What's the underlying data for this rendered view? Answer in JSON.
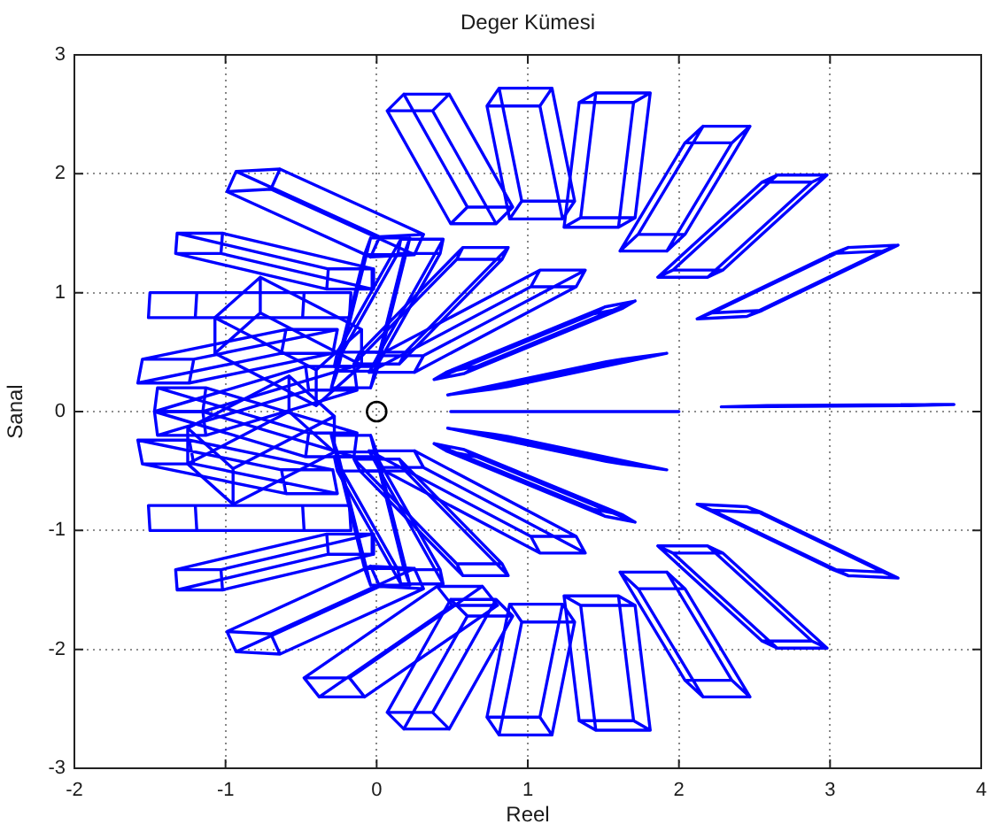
{
  "chart_data": {
    "type": "line",
    "title": "Deger Kümesi",
    "xlabel": "Reel",
    "ylabel": "Sanal",
    "xlim": [
      -2,
      4
    ],
    "ylim": [
      -3,
      3
    ],
    "xticks": [
      -2,
      -1,
      0,
      1,
      2,
      3,
      4
    ],
    "yticks": [
      -3,
      -2,
      -1,
      0,
      1,
      2,
      3
    ],
    "grid": true,
    "legend": false,
    "marker": "none",
    "line_style": "solid",
    "series": [
      {
        "color": "#0000ff",
        "x": [
          2.28,
          3.38,
          3.52,
          2.42,
          2.28,
          2.58,
          3.68,
          3.82,
          2.72,
          2.58,
          2.72,
          2.42,
          3.52,
          3.82,
          3.68,
          3.38
        ],
        "values": [
          0.04,
          0.05,
          0.05,
          0.04,
          0.04,
          0.05,
          0.06,
          0.06,
          0.05,
          0.05,
          0.05,
          0.04,
          0.05,
          0.06,
          0.06,
          0.05
        ]
      },
      {
        "color": "#0000ff",
        "x": [
          0.49,
          1.49,
          1.65,
          0.65,
          0.49,
          0.84,
          1.84,
          2.0,
          1.0,
          0.84,
          1.0,
          0.65,
          1.65,
          2.0,
          1.84,
          1.49
        ],
        "values": [
          0,
          0,
          0,
          0,
          0,
          0,
          0,
          0,
          0,
          0,
          0,
          0,
          0,
          0,
          0,
          0
        ]
      },
      {
        "color": "#0000ff",
        "x": [
          2.12,
          3.02,
          3.12,
          2.22,
          2.12,
          2.45,
          3.35,
          3.45,
          2.55,
          2.45,
          2.55,
          2.22,
          3.12,
          3.45,
          3.35,
          3.02
        ],
        "values": [
          0.78,
          1.33,
          1.38,
          0.83,
          0.78,
          0.8,
          1.35,
          1.4,
          0.85,
          0.8,
          0.85,
          0.83,
          1.38,
          1.4,
          1.35,
          1.33
        ]
      },
      {
        "color": "#0000ff",
        "x": [
          2.55,
          1.86,
          1.96,
          2.65,
          2.55,
          2.88,
          2.19,
          2.29,
          2.98,
          2.88,
          2.98,
          2.65,
          1.96,
          2.29,
          2.19,
          1.86
        ],
        "values": [
          1.93,
          1.13,
          1.19,
          1.99,
          1.93,
          1.93,
          1.13,
          1.19,
          1.99,
          1.93,
          1.99,
          1.99,
          1.19,
          1.19,
          1.13,
          1.13
        ]
      },
      {
        "color": "#0000ff",
        "x": [
          2.04,
          1.61,
          1.73,
          2.16,
          2.04,
          2.35,
          1.92,
          2.04,
          2.47,
          2.35,
          2.47,
          2.16,
          1.73,
          2.04,
          1.92,
          1.61
        ],
        "values": [
          2.26,
          1.35,
          1.49,
          2.4,
          2.26,
          2.26,
          1.35,
          1.49,
          2.4,
          2.26,
          2.4,
          2.4,
          1.49,
          1.49,
          1.35,
          1.35
        ]
      },
      {
        "color": "#0000ff",
        "x": [
          1.34,
          1.24,
          1.35,
          1.45,
          1.34,
          1.7,
          1.6,
          1.71,
          1.81,
          1.7,
          1.81,
          1.45,
          1.35,
          1.71,
          1.6,
          1.24
        ],
        "values": [
          2.6,
          1.55,
          1.63,
          2.68,
          2.6,
          2.6,
          1.55,
          1.63,
          2.68,
          2.6,
          2.68,
          2.68,
          1.63,
          1.63,
          1.55,
          1.55
        ]
      },
      {
        "color": "#0000ff",
        "x": [
          0.73,
          0.88,
          0.96,
          0.81,
          0.73,
          1.08,
          1.23,
          1.31,
          1.16,
          1.08,
          1.16,
          0.81,
          0.96,
          1.31,
          1.23,
          0.88
        ],
        "values": [
          2.57,
          1.62,
          1.77,
          2.72,
          2.57,
          2.57,
          1.62,
          1.77,
          2.72,
          2.57,
          2.72,
          2.72,
          1.77,
          1.77,
          1.62,
          1.62
        ]
      },
      {
        "color": "#0000ff",
        "x": [
          0.07,
          0.49,
          0.6,
          0.18,
          0.07,
          0.37,
          0.79,
          0.9,
          0.48,
          0.37,
          0.48,
          0.18,
          0.6,
          0.9,
          0.79,
          0.49
        ],
        "values": [
          2.53,
          1.58,
          1.72,
          2.67,
          2.53,
          2.53,
          1.58,
          1.72,
          2.67,
          2.53,
          2.67,
          2.67,
          1.72,
          1.72,
          1.58,
          1.58
        ]
      },
      {
        "color": "#0000ff",
        "x": [
          -0.99,
          -0.04,
          0.02,
          -0.93,
          -0.99,
          -0.7,
          0.25,
          0.31,
          -0.64,
          -0.7,
          -0.64,
          -0.93,
          0.02,
          0.31,
          0.25,
          -0.04
        ],
        "values": [
          1.85,
          1.3,
          1.47,
          2.02,
          1.85,
          1.87,
          1.32,
          1.49,
          2.04,
          1.87,
          2.04,
          2.02,
          1.47,
          1.49,
          1.32,
          1.3
        ]
      },
      {
        "color": "#0000ff",
        "x": [
          -1.33,
          -0.33,
          -0.32,
          -1.32,
          -1.33,
          -1.03,
          -0.03,
          -0.02,
          -1.02,
          -1.03,
          -1.02,
          -1.32,
          -0.32,
          -0.02,
          -0.03,
          -0.33
        ],
        "values": [
          1.33,
          1.03,
          1.2,
          1.5,
          1.33,
          1.33,
          1.03,
          1.2,
          1.5,
          1.33,
          1.5,
          1.5,
          1.2,
          1.2,
          1.03,
          1.03
        ]
      },
      {
        "color": "#0000ff",
        "x": [
          -1.51,
          -0.49,
          -0.48,
          -1.5,
          -1.51,
          -1.2,
          -0.18,
          -0.17,
          -1.19,
          -1.2,
          -1.19,
          -1.5,
          -0.48,
          -0.17,
          -0.18,
          -0.49
        ],
        "values": [
          0.79,
          0.79,
          1.0,
          1.0,
          0.79,
          0.79,
          0.79,
          1.0,
          1.0,
          0.79,
          1.0,
          1.0,
          1.0,
          1.0,
          0.79,
          0.79
        ]
      },
      {
        "color": "#0000ff",
        "x": [
          -1.58,
          -0.63,
          -0.6,
          -1.55,
          -1.58,
          -1.24,
          -0.29,
          -0.26,
          -1.21,
          -1.24,
          -1.21,
          -1.55,
          -0.6,
          -0.26,
          -0.29,
          -0.63
        ],
        "values": [
          0.24,
          0.49,
          0.69,
          0.44,
          0.24,
          0.24,
          0.49,
          0.69,
          0.44,
          0.24,
          0.44,
          0.44,
          0.69,
          0.69,
          0.49,
          0.49
        ]
      },
      {
        "color": "#0000ff",
        "x": [
          -1.47,
          -0.47,
          -0.45,
          -1.45,
          -1.47,
          -1.15,
          -0.15,
          -0.13,
          -1.13,
          -1.15,
          -1.13,
          -1.45,
          -0.45,
          -0.13,
          -0.15,
          -0.47
        ],
        "values": [
          0.0,
          -0.38,
          -0.18,
          0.2,
          0.0,
          0.0,
          -0.38,
          -0.18,
          0.2,
          0.0,
          0.2,
          0.2,
          -0.18,
          -0.18,
          -0.38,
          -0.38
        ]
      },
      {
        "color": "#0000ff",
        "x": [
          0.47,
          1.52,
          1.62,
          0.57,
          0.47,
          0.77,
          1.82,
          1.92,
          0.87,
          0.77,
          0.87,
          0.57,
          1.62,
          1.92,
          1.82,
          1.52
        ],
        "values": [
          0.14,
          0.42,
          0.44,
          0.16,
          0.14,
          0.19,
          0.47,
          0.49,
          0.21,
          0.19,
          0.21,
          0.16,
          0.44,
          0.49,
          0.47,
          0.42
        ]
      },
      {
        "color": "#0000ff",
        "x": [
          0.38,
          1.43,
          1.51,
          0.46,
          0.38,
          0.58,
          1.63,
          1.71,
          0.66,
          0.58,
          0.66,
          0.46,
          1.51,
          1.71,
          1.63,
          1.43
        ],
        "values": [
          0.27,
          0.82,
          0.88,
          0.33,
          0.27,
          0.32,
          0.87,
          0.93,
          0.38,
          0.32,
          0.38,
          0.33,
          0.88,
          0.93,
          0.87,
          0.82
        ]
      },
      {
        "color": "#0000ff",
        "x": [
          -0.05,
          1.02,
          1.08,
          0.01,
          -0.05,
          0.25,
          1.32,
          1.38,
          0.31,
          0.25,
          0.31,
          0.01,
          1.08,
          1.38,
          1.32,
          1.02
        ],
        "values": [
          0.33,
          1.05,
          1.19,
          0.47,
          0.33,
          0.33,
          1.05,
          1.19,
          0.47,
          0.33,
          0.47,
          0.47,
          1.19,
          1.19,
          1.05,
          1.05
        ]
      },
      {
        "color": "#0000ff",
        "x": [
          -0.15,
          0.53,
          0.57,
          -0.11,
          -0.15,
          0.15,
          0.83,
          0.87,
          0.19,
          0.15,
          0.19,
          -0.11,
          0.57,
          0.87,
          0.83,
          0.53
        ],
        "values": [
          0.4,
          1.28,
          1.38,
          0.5,
          0.4,
          0.4,
          1.28,
          1.38,
          0.5,
          0.4,
          0.5,
          0.5,
          1.38,
          1.38,
          1.28,
          1.28
        ]
      },
      {
        "color": "#0000ff",
        "x": [
          -0.28,
          0.14,
          0.16,
          -0.26,
          -0.28,
          0.0,
          0.42,
          0.44,
          0.02,
          0.0,
          0.02,
          -0.26,
          0.16,
          0.44,
          0.42,
          0.14
        ],
        "values": [
          0.38,
          1.33,
          1.45,
          0.5,
          0.38,
          0.38,
          1.33,
          1.45,
          0.5,
          0.38,
          0.5,
          0.5,
          1.45,
          1.45,
          1.33,
          1.33
        ]
      },
      {
        "color": "#0000ff",
        "x": [
          -0.3,
          -0.08,
          -0.04,
          -0.26,
          -0.3,
          -0.04,
          0.18,
          0.22,
          0.0,
          -0.04,
          0.0,
          -0.26,
          -0.04,
          0.22,
          0.18,
          -0.08
        ],
        "values": [
          0.2,
          1.32,
          1.46,
          0.34,
          0.2,
          0.2,
          1.32,
          1.46,
          0.34,
          0.2,
          0.34,
          0.34,
          1.46,
          1.46,
          1.32,
          1.32
        ]
      },
      {
        "color": "#0000ff",
        "x": [
          -0.4,
          -1.07,
          -0.77,
          -0.1,
          -0.4,
          -0.4,
          -1.07,
          -0.77,
          -0.1,
          -0.4,
          -0.1,
          -0.1,
          -0.77,
          -0.77,
          -1.07,
          -1.07
        ],
        "values": [
          0.05,
          0.49,
          0.83,
          0.39,
          0.05,
          0.35,
          0.79,
          1.13,
          0.69,
          0.35,
          0.69,
          0.39,
          0.83,
          1.13,
          0.79,
          0.49
        ]
      },
      {
        "color": "#0000ff",
        "x": [
          2.12,
          3.02,
          3.12,
          2.22,
          2.12,
          2.45,
          3.35,
          3.45,
          2.55,
          2.45,
          2.55,
          2.22,
          3.12,
          3.45,
          3.35,
          3.02
        ],
        "values": [
          -0.78,
          -1.33,
          -1.38,
          -0.83,
          -0.78,
          -0.8,
          -1.35,
          -1.4,
          -0.85,
          -0.8,
          -0.85,
          -0.83,
          -1.38,
          -1.4,
          -1.35,
          -1.33
        ]
      },
      {
        "color": "#0000ff",
        "x": [
          2.55,
          1.86,
          1.96,
          2.65,
          2.55,
          2.88,
          2.19,
          2.29,
          2.98,
          2.88,
          2.98,
          2.65,
          1.96,
          2.29,
          2.19,
          1.86
        ],
        "values": [
          -1.93,
          -1.13,
          -1.19,
          -1.99,
          -1.93,
          -1.93,
          -1.13,
          -1.19,
          -1.99,
          -1.93,
          -1.99,
          -1.99,
          -1.19,
          -1.19,
          -1.13,
          -1.13
        ]
      },
      {
        "color": "#0000ff",
        "x": [
          2.04,
          1.61,
          1.73,
          2.16,
          2.04,
          2.35,
          1.92,
          2.04,
          2.47,
          2.35,
          2.47,
          2.16,
          1.73,
          2.04,
          1.92,
          1.61
        ],
        "values": [
          -2.26,
          -1.35,
          -1.49,
          -2.4,
          -2.26,
          -2.26,
          -1.35,
          -1.49,
          -2.4,
          -2.26,
          -2.4,
          -2.4,
          -1.49,
          -1.49,
          -1.35,
          -1.35
        ]
      },
      {
        "color": "#0000ff",
        "x": [
          1.34,
          1.24,
          1.35,
          1.45,
          1.34,
          1.7,
          1.6,
          1.71,
          1.81,
          1.7,
          1.81,
          1.45,
          1.35,
          1.71,
          1.6,
          1.24
        ],
        "values": [
          -2.6,
          -1.55,
          -1.63,
          -2.68,
          -2.6,
          -2.6,
          -1.55,
          -1.63,
          -2.68,
          -2.6,
          -2.68,
          -2.68,
          -1.63,
          -1.63,
          -1.55,
          -1.55
        ]
      },
      {
        "color": "#0000ff",
        "x": [
          0.73,
          0.88,
          0.96,
          0.81,
          0.73,
          1.08,
          1.23,
          1.31,
          1.16,
          1.08,
          1.16,
          0.81,
          0.96,
          1.31,
          1.23,
          0.88
        ],
        "values": [
          -2.57,
          -1.62,
          -1.77,
          -2.72,
          -2.57,
          -2.57,
          -1.62,
          -1.77,
          -2.72,
          -2.57,
          -2.72,
          -2.72,
          -1.77,
          -1.77,
          -1.62,
          -1.62
        ]
      },
      {
        "color": "#0000ff",
        "x": [
          0.07,
          0.49,
          0.6,
          0.18,
          0.07,
          0.37,
          0.79,
          0.9,
          0.48,
          0.37,
          0.48,
          0.18,
          0.6,
          0.9,
          0.79,
          0.49
        ],
        "values": [
          -2.53,
          -1.58,
          -1.72,
          -2.67,
          -2.53,
          -2.53,
          -1.58,
          -1.72,
          -2.67,
          -2.53,
          -2.67,
          -2.67,
          -1.72,
          -1.72,
          -1.58,
          -1.58
        ]
      },
      {
        "color": "#0000ff",
        "x": [
          -0.48,
          0.4,
          0.5,
          -0.38,
          -0.48,
          -0.18,
          0.7,
          0.8,
          -0.08,
          -0.18,
          -0.08,
          -0.38,
          0.5,
          0.8,
          0.7,
          0.4
        ],
        "values": [
          -2.24,
          -1.47,
          -1.63,
          -2.4,
          -2.24,
          -2.24,
          -1.47,
          -1.63,
          -2.4,
          -2.24,
          -2.4,
          -2.4,
          -1.63,
          -1.63,
          -1.47,
          -1.47
        ]
      },
      {
        "color": "#0000ff",
        "x": [
          -0.99,
          -0.04,
          0.02,
          -0.93,
          -0.99,
          -0.7,
          0.25,
          0.31,
          -0.64,
          -0.7,
          -0.64,
          -0.93,
          0.02,
          0.31,
          0.25,
          -0.04
        ],
        "values": [
          -1.85,
          -1.3,
          -1.47,
          -2.02,
          -1.85,
          -1.87,
          -1.32,
          -1.49,
          -2.04,
          -1.87,
          -2.04,
          -2.02,
          -1.47,
          -1.49,
          -1.32,
          -1.3
        ]
      },
      {
        "color": "#0000ff",
        "x": [
          -1.33,
          -0.33,
          -0.32,
          -1.32,
          -1.33,
          -1.03,
          -0.03,
          -0.02,
          -1.02,
          -1.03,
          -1.02,
          -1.32,
          -0.32,
          -0.02,
          -0.03,
          -0.33
        ],
        "values": [
          -1.33,
          -1.03,
          -1.2,
          -1.5,
          -1.33,
          -1.33,
          -1.03,
          -1.2,
          -1.5,
          -1.33,
          -1.5,
          -1.5,
          -1.2,
          -1.2,
          -1.03,
          -1.03
        ]
      },
      {
        "color": "#0000ff",
        "x": [
          -1.51,
          -0.49,
          -0.48,
          -1.5,
          -1.51,
          -1.2,
          -0.18,
          -0.17,
          -1.19,
          -1.2,
          -1.19,
          -1.5,
          -0.48,
          -0.17,
          -0.18,
          -0.49
        ],
        "values": [
          -0.79,
          -0.79,
          -1.0,
          -1.0,
          -0.79,
          -0.79,
          -0.79,
          -1.0,
          -1.0,
          -0.79,
          -1.0,
          -1.0,
          -1.0,
          -1.0,
          -0.79,
          -0.79
        ]
      },
      {
        "color": "#0000ff",
        "x": [
          -1.58,
          -0.63,
          -0.6,
          -1.55,
          -1.58,
          -1.24,
          -0.29,
          -0.26,
          -1.21,
          -1.24,
          -1.21,
          -1.55,
          -0.6,
          -0.26,
          -0.29,
          -0.63
        ],
        "values": [
          -0.24,
          -0.49,
          -0.69,
          -0.44,
          -0.24,
          -0.24,
          -0.49,
          -0.69,
          -0.44,
          -0.24,
          -0.44,
          -0.44,
          -0.69,
          -0.69,
          -0.49,
          -0.49
        ]
      },
      {
        "color": "#0000ff",
        "x": [
          -1.47,
          -0.47,
          -0.45,
          -1.45,
          -1.47,
          -1.15,
          -0.15,
          -0.13,
          -1.13,
          -1.15,
          -1.13,
          -1.45,
          -0.45,
          -0.13,
          -0.15,
          -0.47
        ],
        "values": [
          0.0,
          0.38,
          0.18,
          -0.2,
          0.0,
          0.0,
          0.38,
          0.18,
          -0.2,
          0.0,
          -0.2,
          -0.2,
          0.18,
          0.18,
          0.38,
          0.38
        ]
      },
      {
        "color": "#0000ff",
        "x": [
          0.47,
          1.52,
          1.62,
          0.57,
          0.47,
          0.77,
          1.82,
          1.92,
          0.87,
          0.77,
          0.87,
          0.57,
          1.62,
          1.92,
          1.82,
          1.52
        ],
        "values": [
          -0.14,
          -0.42,
          -0.44,
          -0.16,
          -0.14,
          -0.19,
          -0.47,
          -0.49,
          -0.21,
          -0.19,
          -0.21,
          -0.16,
          -0.44,
          -0.49,
          -0.47,
          -0.42
        ]
      },
      {
        "color": "#0000ff",
        "x": [
          0.38,
          1.43,
          1.51,
          0.46,
          0.38,
          0.58,
          1.63,
          1.71,
          0.66,
          0.58,
          0.66,
          0.46,
          1.51,
          1.71,
          1.63,
          1.43
        ],
        "values": [
          -0.27,
          -0.82,
          -0.88,
          -0.33,
          -0.27,
          -0.32,
          -0.87,
          -0.93,
          -0.38,
          -0.32,
          -0.38,
          -0.33,
          -0.88,
          -0.93,
          -0.87,
          -0.82
        ]
      },
      {
        "color": "#0000ff",
        "x": [
          -0.05,
          1.02,
          1.08,
          0.01,
          -0.05,
          0.25,
          1.32,
          1.38,
          0.31,
          0.25,
          0.31,
          0.01,
          1.08,
          1.38,
          1.32,
          1.02
        ],
        "values": [
          -0.33,
          -1.05,
          -1.19,
          -0.47,
          -0.33,
          -0.33,
          -1.05,
          -1.19,
          -0.47,
          -0.33,
          -0.47,
          -0.47,
          -1.19,
          -1.19,
          -1.05,
          -1.05
        ]
      },
      {
        "color": "#0000ff",
        "x": [
          -0.15,
          0.53,
          0.57,
          -0.11,
          -0.15,
          0.15,
          0.83,
          0.87,
          0.19,
          0.15,
          0.19,
          -0.11,
          0.57,
          0.87,
          0.83,
          0.53
        ],
        "values": [
          -0.4,
          -1.28,
          -1.38,
          -0.5,
          -0.4,
          -0.4,
          -1.28,
          -1.38,
          -0.5,
          -0.4,
          -0.5,
          -0.5,
          -1.38,
          -1.38,
          -1.28,
          -1.28
        ]
      },
      {
        "color": "#0000ff",
        "x": [
          -0.28,
          0.14,
          0.16,
          -0.26,
          -0.28,
          0.0,
          0.42,
          0.44,
          0.02,
          0.0,
          0.02,
          -0.26,
          0.16,
          0.44,
          0.42,
          0.14
        ],
        "values": [
          -0.38,
          -1.33,
          -1.45,
          -0.5,
          -0.38,
          -0.38,
          -1.33,
          -1.45,
          -0.5,
          -0.38,
          -0.5,
          -0.5,
          -1.45,
          -1.45,
          -1.33,
          -1.33
        ]
      },
      {
        "color": "#0000ff",
        "x": [
          -0.3,
          -0.08,
          -0.04,
          -0.26,
          -0.3,
          -0.04,
          0.18,
          0.22,
          0.0,
          -0.04,
          0.0,
          -0.26,
          -0.04,
          0.22,
          0.18,
          -0.08
        ],
        "values": [
          -0.2,
          -1.32,
          -1.46,
          -0.34,
          -0.2,
          -0.2,
          -1.32,
          -1.46,
          -0.34,
          -0.2,
          -0.34,
          -0.34,
          -1.46,
          -1.46,
          -1.32,
          -1.32
        ]
      },
      {
        "color": "#0000ff",
        "x": [
          -0.58,
          -1.25,
          -0.95,
          -0.28,
          -0.58,
          -0.58,
          -1.25,
          -0.95,
          -0.28,
          -0.58,
          -0.28,
          -0.28,
          -0.95,
          -0.95,
          -1.25,
          -1.25
        ],
        "values": [
          0.3,
          -0.14,
          -0.48,
          -0.04,
          0.3,
          0.0,
          -0.44,
          -0.78,
          -0.34,
          0.0,
          -0.34,
          -0.04,
          -0.48,
          -0.78,
          -0.44,
          -0.14
        ]
      },
      {
        "type": "scatter",
        "color": "#000000",
        "marker": "circle",
        "x": [
          0
        ],
        "values": [
          0
        ]
      }
    ]
  }
}
